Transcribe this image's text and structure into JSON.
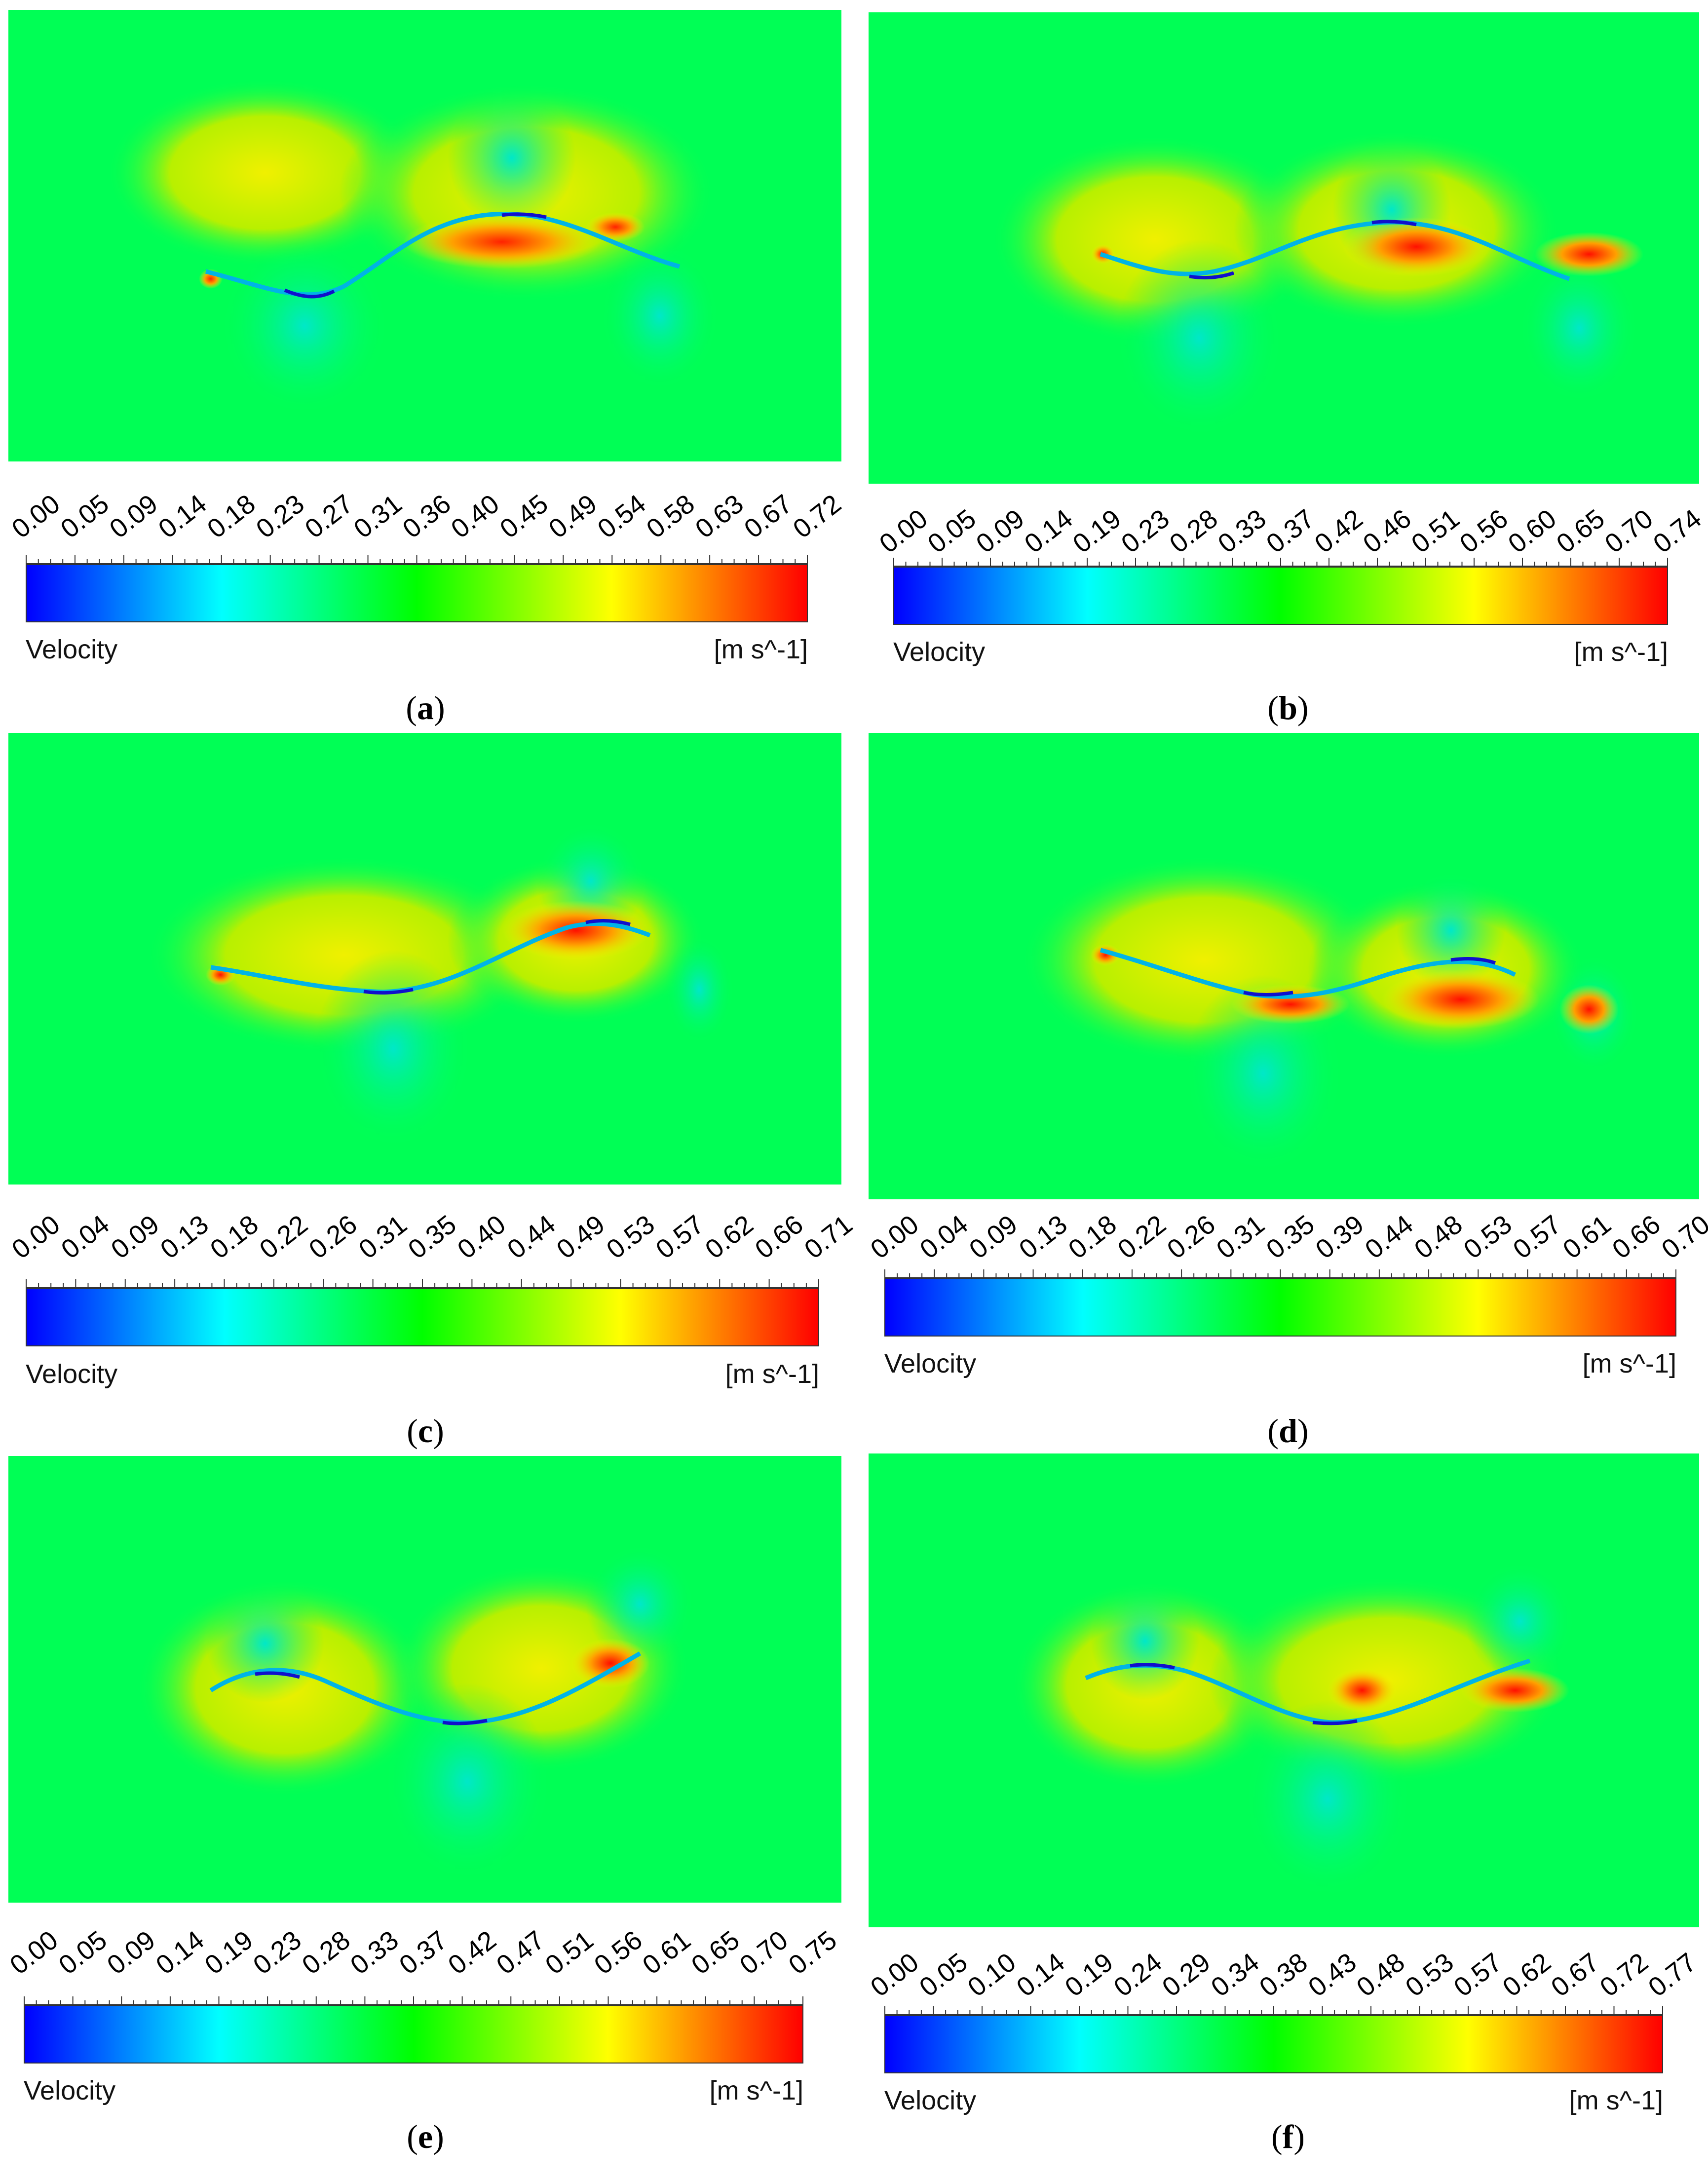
{
  "colormap": [
    "#0000ff",
    "#00ffff",
    "#00ff00",
    "#ffff00",
    "#ff0000"
  ],
  "panels": [
    {
      "id": "a",
      "caption_letter": "a",
      "variable": "Velocity",
      "unit": "[m s^-1]",
      "ticks": [
        "0.00",
        "0.05",
        "0.09",
        "0.14",
        "0.18",
        "0.23",
        "0.27",
        "0.31",
        "0.36",
        "0.40",
        "0.45",
        "0.49",
        "0.54",
        "0.58",
        "0.63",
        "0.67",
        "0.72"
      ]
    },
    {
      "id": "b",
      "caption_letter": "b",
      "variable": "Velocity",
      "unit": "[m s^-1]",
      "ticks": [
        "0.00",
        "0.05",
        "0.09",
        "0.14",
        "0.19",
        "0.23",
        "0.28",
        "0.33",
        "0.37",
        "0.42",
        "0.46",
        "0.51",
        "0.56",
        "0.60",
        "0.65",
        "0.70",
        "0.74"
      ]
    },
    {
      "id": "c",
      "caption_letter": "c",
      "variable": "Velocity",
      "unit": "[m s^-1]",
      "ticks": [
        "0.00",
        "0.04",
        "0.09",
        "0.13",
        "0.18",
        "0.22",
        "0.26",
        "0.31",
        "0.35",
        "0.40",
        "0.44",
        "0.49",
        "0.53",
        "0.57",
        "0.62",
        "0.66",
        "0.71"
      ]
    },
    {
      "id": "d",
      "caption_letter": "d",
      "variable": "Velocity",
      "unit": "[m s^-1]",
      "ticks": [
        "0.00",
        "0.04",
        "0.09",
        "0.13",
        "0.18",
        "0.22",
        "0.26",
        "0.31",
        "0.35",
        "0.39",
        "0.44",
        "0.48",
        "0.53",
        "0.57",
        "0.61",
        "0.66",
        "0.70"
      ]
    },
    {
      "id": "e",
      "caption_letter": "e",
      "variable": "Velocity",
      "unit": "[m s^-1]",
      "ticks": [
        "0.00",
        "0.05",
        "0.09",
        "0.14",
        "0.19",
        "0.23",
        "0.28",
        "0.33",
        "0.37",
        "0.42",
        "0.47",
        "0.51",
        "0.56",
        "0.61",
        "0.65",
        "0.70",
        "0.75"
      ]
    },
    {
      "id": "f",
      "caption_letter": "f",
      "variable": "Velocity",
      "unit": "[m s^-1]",
      "ticks": [
        "0.00",
        "0.05",
        "0.10",
        "0.14",
        "0.19",
        "0.24",
        "0.29",
        "0.34",
        "0.38",
        "0.43",
        "0.48",
        "0.53",
        "0.57",
        "0.62",
        "0.67",
        "0.72",
        "0.77"
      ]
    }
  ]
}
